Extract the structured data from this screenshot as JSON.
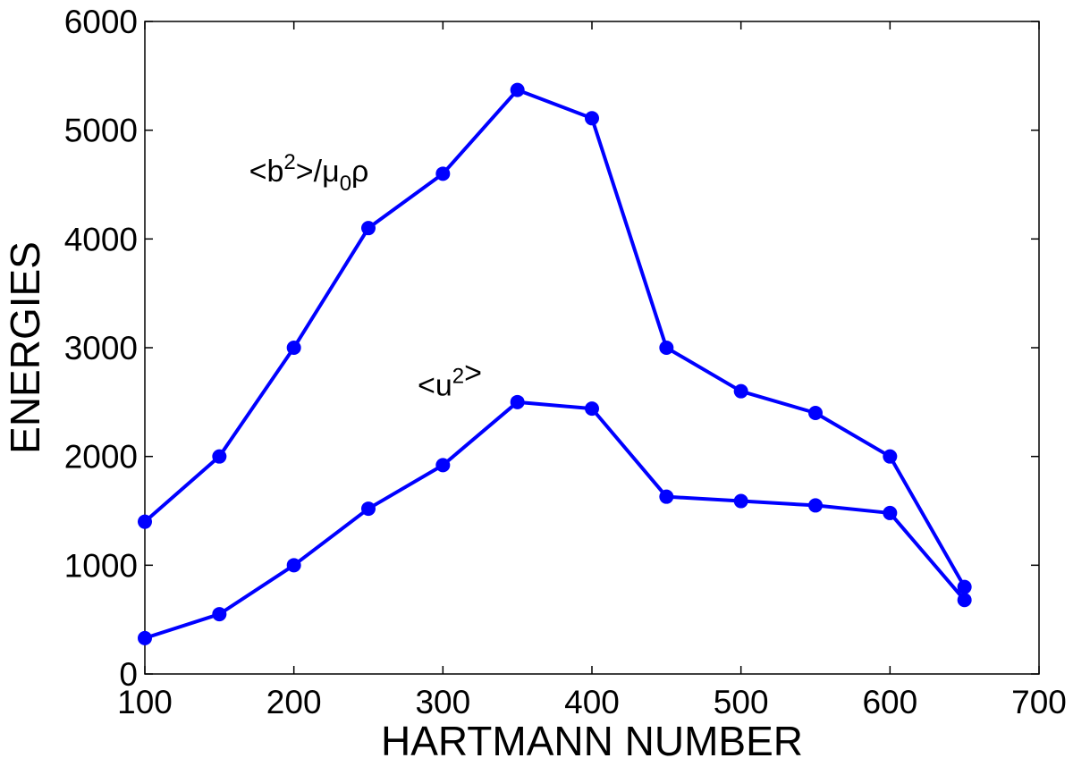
{
  "chart_data": {
    "type": "line",
    "xlabel": "HARTMANN NUMBER",
    "ylabel": "ENERGIES",
    "xlim": [
      100,
      700
    ],
    "ylim": [
      0,
      6000
    ],
    "xticks": [
      100,
      200,
      300,
      400,
      500,
      600,
      700
    ],
    "yticks": [
      0,
      1000,
      2000,
      3000,
      4000,
      5000,
      6000
    ],
    "grid": false,
    "legend": "none",
    "color": "#0000ff",
    "x": [
      100,
      150,
      200,
      250,
      300,
      350,
      400,
      450,
      500,
      550,
      600,
      650
    ],
    "series": [
      {
        "label_main": "<b",
        "label_sup": "2",
        "label_mid": ">/μ",
        "label_sub": "0",
        "label_end": "ρ",
        "label_anchor": [
          170,
          4530
        ],
        "values": [
          1400,
          2000,
          3000,
          4100,
          4600,
          5370,
          5110,
          3000,
          2600,
          2400,
          2000,
          800
        ]
      },
      {
        "label_main": "<u",
        "label_sup": "2",
        "label_end": ">",
        "label_anchor": [
          283,
          2560
        ],
        "values": [
          330,
          550,
          1000,
          1520,
          1920,
          2500,
          2440,
          1630,
          1590,
          1550,
          1480,
          680
        ]
      }
    ]
  }
}
